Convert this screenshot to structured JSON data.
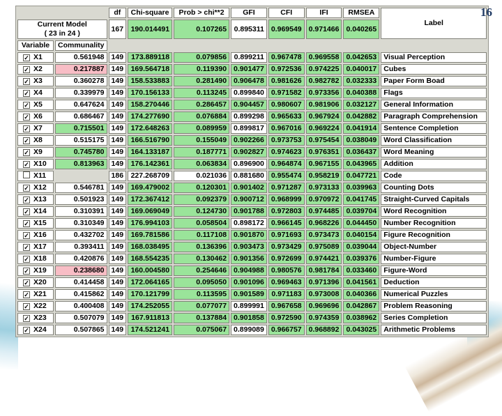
{
  "page_number": "16",
  "colors": {
    "highlight_green": "#9ae49a",
    "highlight_pink": "#f8bdc5",
    "table_background": "#d9d9d1",
    "page_number_blue": "#1f3a64"
  },
  "table": {
    "columns": [
      "df",
      "Chi-square",
      "Prob > chi**2",
      "GFI",
      "CFI",
      "IFI",
      "RMSEA",
      "Label"
    ],
    "sub_columns": [
      "Variable",
      "Communality"
    ],
    "current_model": {
      "title_line1": "Current Model",
      "title_line2": "( 23 in 24 )",
      "df": "167",
      "chi_square": "190.014491",
      "prob": "0.107265",
      "gfi": "0.895311",
      "cfi": "0.969549",
      "ifi": "0.971466",
      "rmsea": "0.040265",
      "highlight": {
        "chi_square": "green",
        "prob": "green",
        "cfi": "green",
        "ifi": "green",
        "rmsea": "green"
      }
    },
    "rows": [
      {
        "variable": "X1",
        "checked": true,
        "cells": {
          "communality": "0.561948",
          "df": "149",
          "chi_square": "173.889118",
          "prob": "0.079856",
          "gfi": "0.899211",
          "cfi": "0.967478",
          "ifi": "0.969558",
          "rmsea": "0.042653",
          "label": "Visual Perception"
        },
        "highlight": {
          "chi_square": "green",
          "prob": "green",
          "cfi": "green",
          "ifi": "green",
          "rmsea": "green"
        }
      },
      {
        "variable": "X2",
        "checked": true,
        "cells": {
          "communality": "0.217887",
          "df": "149",
          "chi_square": "169.564718",
          "prob": "0.119390",
          "gfi": "0.901477",
          "cfi": "0.972536",
          "ifi": "0.974225",
          "rmsea": "0.040017",
          "label": "Cubes"
        },
        "highlight": {
          "communality": "pink",
          "chi_square": "green",
          "prob": "green",
          "gfi": "green",
          "cfi": "green",
          "ifi": "green",
          "rmsea": "green"
        }
      },
      {
        "variable": "X3",
        "checked": true,
        "cells": {
          "communality": "0.360278",
          "df": "149",
          "chi_square": "158.533883",
          "prob": "0.281490",
          "gfi": "0.906478",
          "cfi": "0.981626",
          "ifi": "0.982782",
          "rmsea": "0.032333",
          "label": "Paper Form Boad"
        },
        "highlight": {
          "chi_square": "green",
          "prob": "green",
          "gfi": "green",
          "cfi": "green",
          "ifi": "green",
          "rmsea": "green"
        }
      },
      {
        "variable": "X4",
        "checked": true,
        "cells": {
          "communality": "0.339979",
          "df": "149",
          "chi_square": "170.156133",
          "prob": "0.113245",
          "gfi": "0.899840",
          "cfi": "0.971582",
          "ifi": "0.973356",
          "rmsea": "0.040388",
          "label": "Flags"
        },
        "highlight": {
          "chi_square": "green",
          "prob": "green",
          "cfi": "green",
          "ifi": "green",
          "rmsea": "green"
        }
      },
      {
        "variable": "X5",
        "checked": true,
        "cells": {
          "communality": "0.647624",
          "df": "149",
          "chi_square": "158.270446",
          "prob": "0.286457",
          "gfi": "0.904457",
          "cfi": "0.980607",
          "ifi": "0.981906",
          "rmsea": "0.032127",
          "label": "General Information"
        },
        "highlight": {
          "chi_square": "green",
          "prob": "green",
          "gfi": "green",
          "cfi": "green",
          "ifi": "green",
          "rmsea": "green"
        }
      },
      {
        "variable": "X6",
        "checked": true,
        "cells": {
          "communality": "0.686467",
          "df": "149",
          "chi_square": "174.277690",
          "prob": "0.076884",
          "gfi": "0.899298",
          "cfi": "0.965633",
          "ifi": "0.967924",
          "rmsea": "0.042882",
          "label": "Paragraph Comprehension"
        },
        "highlight": {
          "chi_square": "green",
          "prob": "green",
          "cfi": "green",
          "ifi": "green",
          "rmsea": "green"
        }
      },
      {
        "variable": "X7",
        "checked": true,
        "cells": {
          "communality": "0.715501",
          "df": "149",
          "chi_square": "172.648263",
          "prob": "0.089959",
          "gfi": "0.899817",
          "cfi": "0.967016",
          "ifi": "0.969224",
          "rmsea": "0.041914",
          "label": "Sentence Completion"
        },
        "highlight": {
          "communality": "green",
          "chi_square": "green",
          "prob": "green",
          "cfi": "green",
          "ifi": "green",
          "rmsea": "green"
        }
      },
      {
        "variable": "X8",
        "checked": true,
        "cells": {
          "communality": "0.515175",
          "df": "149",
          "chi_square": "166.516790",
          "prob": "0.155049",
          "gfi": "0.902266",
          "cfi": "0.973753",
          "ifi": "0.975454",
          "rmsea": "0.038049",
          "label": "Word Classification"
        },
        "highlight": {
          "chi_square": "green",
          "prob": "green",
          "gfi": "green",
          "cfi": "green",
          "ifi": "green",
          "rmsea": "green"
        }
      },
      {
        "variable": "X9",
        "checked": true,
        "cells": {
          "communality": "0.745780",
          "df": "149",
          "chi_square": "164.133187",
          "prob": "0.187771",
          "gfi": "0.902827",
          "cfi": "0.974623",
          "ifi": "0.976351",
          "rmsea": "0.036437",
          "label": "Word Meaning"
        },
        "highlight": {
          "communality": "green",
          "chi_square": "green",
          "prob": "green",
          "gfi": "green",
          "cfi": "green",
          "ifi": "green",
          "rmsea": "green"
        }
      },
      {
        "variable": "X10",
        "checked": true,
        "cells": {
          "communality": "0.813963",
          "df": "149",
          "chi_square": "176.142361",
          "prob": "0.063834",
          "gfi": "0.896900",
          "cfi": "0.964874",
          "ifi": "0.967155",
          "rmsea": "0.043965",
          "label": "Addition"
        },
        "highlight": {
          "communality": "green",
          "chi_square": "green",
          "prob": "green",
          "cfi": "green",
          "ifi": "green",
          "rmsea": "green"
        }
      },
      {
        "variable": "X11",
        "checked": false,
        "cells": {
          "communality": "",
          "df": "186",
          "chi_square": "227.268709",
          "prob": "0.021036",
          "gfi": "0.881680",
          "cfi": "0.955474",
          "ifi": "0.958219",
          "rmsea": "0.047721",
          "label": "Code"
        },
        "highlight": {
          "cfi": "green",
          "ifi": "green",
          "rmsea": "green"
        }
      },
      {
        "variable": "X12",
        "checked": true,
        "cells": {
          "communality": "0.546781",
          "df": "149",
          "chi_square": "169.479002",
          "prob": "0.120301",
          "gfi": "0.901402",
          "cfi": "0.971287",
          "ifi": "0.973133",
          "rmsea": "0.039963",
          "label": "Counting Dots"
        },
        "highlight": {
          "chi_square": "green",
          "prob": "green",
          "gfi": "green",
          "cfi": "green",
          "ifi": "green",
          "rmsea": "green"
        }
      },
      {
        "variable": "X13",
        "checked": true,
        "cells": {
          "communality": "0.501923",
          "df": "149",
          "chi_square": "172.367412",
          "prob": "0.092379",
          "gfi": "0.900712",
          "cfi": "0.968999",
          "ifi": "0.970972",
          "rmsea": "0.041745",
          "label": "Straight-Curved Capitals"
        },
        "highlight": {
          "chi_square": "green",
          "prob": "green",
          "gfi": "green",
          "cfi": "green",
          "ifi": "green",
          "rmsea": "green"
        }
      },
      {
        "variable": "X14",
        "checked": true,
        "cells": {
          "communality": "0.310391",
          "df": "149",
          "chi_square": "169.069049",
          "prob": "0.124730",
          "gfi": "0.901788",
          "cfi": "0.972803",
          "ifi": "0.974485",
          "rmsea": "0.039704",
          "label": "Word Recognition"
        },
        "highlight": {
          "chi_square": "green",
          "prob": "green",
          "gfi": "green",
          "cfi": "green",
          "ifi": "green",
          "rmsea": "green"
        }
      },
      {
        "variable": "X15",
        "checked": true,
        "cells": {
          "communality": "0.310349",
          "df": "149",
          "chi_square": "176.994103",
          "prob": "0.058504",
          "gfi": "0.898172",
          "cfi": "0.966145",
          "ifi": "0.968226",
          "rmsea": "0.044450",
          "label": "Number Recognition"
        },
        "highlight": {
          "chi_square": "green",
          "prob": "green",
          "cfi": "green",
          "ifi": "green",
          "rmsea": "green"
        }
      },
      {
        "variable": "X16",
        "checked": true,
        "cells": {
          "communality": "0.432702",
          "df": "149",
          "chi_square": "169.781586",
          "prob": "0.117108",
          "gfi": "0.901870",
          "cfi": "0.971693",
          "ifi": "0.973473",
          "rmsea": "0.040154",
          "label": "Figure Recognition"
        },
        "highlight": {
          "chi_square": "green",
          "prob": "green",
          "gfi": "green",
          "cfi": "green",
          "ifi": "green",
          "rmsea": "green"
        }
      },
      {
        "variable": "X17",
        "checked": true,
        "cells": {
          "communality": "0.393411",
          "df": "149",
          "chi_square": "168.038495",
          "prob": "0.136396",
          "gfi": "0.903473",
          "cfi": "0.973429",
          "ifi": "0.975089",
          "rmsea": "0.039044",
          "label": "Object-Number"
        },
        "highlight": {
          "chi_square": "green",
          "prob": "green",
          "gfi": "green",
          "cfi": "green",
          "ifi": "green",
          "rmsea": "green"
        }
      },
      {
        "variable": "X18",
        "checked": true,
        "cells": {
          "communality": "0.420876",
          "df": "149",
          "chi_square": "168.554235",
          "prob": "0.130462",
          "gfi": "0.901356",
          "cfi": "0.972699",
          "ifi": "0.974421",
          "rmsea": "0.039376",
          "label": "Number-Figure"
        },
        "highlight": {
          "chi_square": "green",
          "prob": "green",
          "gfi": "green",
          "cfi": "green",
          "ifi": "green",
          "rmsea": "green"
        }
      },
      {
        "variable": "X19",
        "checked": true,
        "cells": {
          "communality": "0.238680",
          "df": "149",
          "chi_square": "160.004580",
          "prob": "0.254646",
          "gfi": "0.904988",
          "cfi": "0.980576",
          "ifi": "0.981784",
          "rmsea": "0.033460",
          "label": "Figure-Word"
        },
        "highlight": {
          "communality": "pink",
          "chi_square": "green",
          "prob": "green",
          "gfi": "green",
          "cfi": "green",
          "ifi": "green",
          "rmsea": "green"
        }
      },
      {
        "variable": "X20",
        "checked": true,
        "cells": {
          "communality": "0.414458",
          "df": "149",
          "chi_square": "172.064165",
          "prob": "0.095050",
          "gfi": "0.901096",
          "cfi": "0.969463",
          "ifi": "0.971396",
          "rmsea": "0.041561",
          "label": "Deduction"
        },
        "highlight": {
          "chi_square": "green",
          "prob": "green",
          "gfi": "green",
          "cfi": "green",
          "ifi": "green",
          "rmsea": "green"
        }
      },
      {
        "variable": "X21",
        "checked": true,
        "cells": {
          "communality": "0.415862",
          "df": "149",
          "chi_square": "170.121799",
          "prob": "0.113595",
          "gfi": "0.901589",
          "cfi": "0.971183",
          "ifi": "0.973008",
          "rmsea": "0.040366",
          "label": "Numerical Puzzles"
        },
        "highlight": {
          "chi_square": "green",
          "prob": "green",
          "gfi": "green",
          "cfi": "green",
          "ifi": "green",
          "rmsea": "green"
        }
      },
      {
        "variable": "X22",
        "checked": true,
        "cells": {
          "communality": "0.400408",
          "df": "149",
          "chi_square": "174.252055",
          "prob": "0.077077",
          "gfi": "0.899991",
          "cfi": "0.967658",
          "ifi": "0.969696",
          "rmsea": "0.042867",
          "label": "Problem Reasoning"
        },
        "highlight": {
          "chi_square": "green",
          "prob": "green",
          "cfi": "green",
          "ifi": "green",
          "rmsea": "green"
        }
      },
      {
        "variable": "X23",
        "checked": true,
        "cells": {
          "communality": "0.507079",
          "df": "149",
          "chi_square": "167.911813",
          "prob": "0.137884",
          "gfi": "0.901858",
          "cfi": "0.972590",
          "ifi": "0.974359",
          "rmsea": "0.038962",
          "label": "Series Completion"
        },
        "highlight": {
          "chi_square": "green",
          "prob": "green",
          "gfi": "green",
          "cfi": "green",
          "ifi": "green",
          "rmsea": "green"
        }
      },
      {
        "variable": "X24",
        "checked": true,
        "cells": {
          "communality": "0.507865",
          "df": "149",
          "chi_square": "174.521241",
          "prob": "0.075067",
          "gfi": "0.899089",
          "cfi": "0.966757",
          "ifi": "0.968892",
          "rmsea": "0.043025",
          "label": "Arithmetic Problems"
        },
        "highlight": {
          "chi_square": "green",
          "prob": "green",
          "cfi": "green",
          "ifi": "green",
          "rmsea": "green"
        }
      }
    ]
  }
}
